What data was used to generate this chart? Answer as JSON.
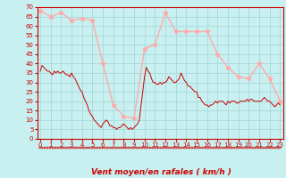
{
  "title": "",
  "xlabel": "Vent moyen/en rafales ( km/h )",
  "ylabel": "",
  "background_color": "#c8f0f0",
  "grid_color": "#a8d8d8",
  "ylim": [
    0,
    70
  ],
  "yticks": [
    0,
    5,
    10,
    15,
    20,
    25,
    30,
    35,
    40,
    45,
    50,
    55,
    60,
    65,
    70
  ],
  "xticks": [
    0,
    1,
    2,
    3,
    4,
    5,
    6,
    7,
    8,
    9,
    10,
    11,
    12,
    13,
    14,
    15,
    16,
    17,
    18,
    19,
    20,
    21,
    22,
    23
  ],
  "wind_avg_x": [
    0,
    0.17,
    0.33,
    0.5,
    0.67,
    0.83,
    1,
    1.17,
    1.33,
    1.5,
    1.67,
    1.83,
    2,
    2.17,
    2.33,
    2.5,
    2.67,
    2.83,
    3,
    3.17,
    3.33,
    3.5,
    3.67,
    3.83,
    4,
    4.17,
    4.33,
    4.5,
    4.67,
    4.83,
    5,
    5.17,
    5.33,
    5.5,
    5.67,
    5.83,
    6,
    6.17,
    6.33,
    6.5,
    6.67,
    6.83,
    7,
    7.17,
    7.33,
    7.5,
    7.67,
    7.83,
    8,
    8.17,
    8.33,
    8.5,
    8.67,
    8.83,
    9,
    9.17,
    9.33,
    9.5,
    9.67,
    9.83,
    10,
    10.17,
    10.33,
    10.5,
    10.67,
    10.83,
    11,
    11.17,
    11.33,
    11.5,
    11.67,
    11.83,
    12,
    12.17,
    12.33,
    12.5,
    12.67,
    12.83,
    13,
    13.17,
    13.33,
    13.5,
    13.67,
    13.83,
    14,
    14.17,
    14.33,
    14.5,
    14.67,
    14.83,
    15,
    15.17,
    15.33,
    15.5,
    15.67,
    15.83,
    16,
    16.17,
    16.33,
    16.5,
    16.67,
    16.83,
    17,
    17.17,
    17.33,
    17.5,
    17.67,
    17.83,
    18,
    18.17,
    18.33,
    18.5,
    18.67,
    18.83,
    19,
    19.17,
    19.33,
    19.5,
    19.67,
    19.83,
    20,
    20.17,
    20.33,
    20.5,
    20.67,
    20.83,
    21,
    21.17,
    21.33,
    21.5,
    21.67,
    21.83,
    22,
    22.17,
    22.33,
    22.5,
    22.67,
    22.83,
    23
  ],
  "wind_avg_y": [
    36,
    39,
    38,
    37,
    36,
    36,
    35,
    34,
    36,
    35,
    36,
    35,
    35,
    36,
    35,
    34,
    34,
    33,
    35,
    33,
    32,
    30,
    28,
    26,
    25,
    22,
    20,
    18,
    15,
    13,
    12,
    10,
    9,
    8,
    7,
    6,
    8,
    9,
    10,
    9,
    7,
    7,
    6,
    6,
    5,
    6,
    6,
    7,
    8,
    7,
    6,
    5,
    6,
    5,
    6,
    7,
    8,
    10,
    18,
    25,
    33,
    38,
    36,
    35,
    32,
    30,
    30,
    29,
    29,
    30,
    29,
    30,
    30,
    31,
    33,
    32,
    31,
    30,
    30,
    31,
    32,
    35,
    33,
    31,
    30,
    28,
    28,
    27,
    26,
    25,
    25,
    22,
    22,
    20,
    19,
    18,
    18,
    17,
    18,
    18,
    19,
    20,
    19,
    20,
    20,
    20,
    19,
    18,
    20,
    19,
    20,
    20,
    20,
    19,
    19,
    20,
    20,
    20,
    20,
    21,
    20,
    21,
    21,
    20,
    20,
    20,
    20,
    20,
    21,
    22,
    21,
    20,
    20,
    19,
    18,
    17,
    18,
    19,
    18
  ],
  "wind_gust_x": [
    0,
    1,
    2,
    3,
    4,
    5,
    6,
    7,
    8,
    9,
    10,
    11,
    12,
    13,
    14,
    15,
    16,
    17,
    18,
    19,
    20,
    21,
    22,
    23
  ],
  "wind_gust_y": [
    68,
    65,
    67,
    63,
    64,
    63,
    40,
    18,
    12,
    11,
    48,
    50,
    67,
    57,
    57,
    57,
    57,
    45,
    38,
    33,
    32,
    40,
    32,
    20
  ],
  "line_avg_color": "#cc0000",
  "line_gust_color": "#ffaaaa",
  "marker_color": "#ffaaaa",
  "tick_label_color": "#cc0000",
  "xlabel_color": "#cc0000",
  "axis_color": "#cc0000",
  "wind_dir_symbols": "⇆⇆⇆⇆⇆⇆⇆⇆⇆⇆⇆⇆⇆⇆⇆⇆⇆⇆⇆⇆⇆⇆⇆⇆⇆⇆⇆⇆⇆⇆⇆⇆⇆⇆⇆⇆⇆⇆⇆⇆⇆⇆⇆⇆⇆⇆⇆⇆⇆⇆⇆⇆⇆⇆⇆⇆⇆⇆⇆⇆⇆⇆⇆⇆⇆⇆⇆⇆⇆⇆⇆⇆⇆⇆⇆⇆⇆⇆⇆⇆⇆⇆⇆⇆⇆⇆⇆⇆⇆⇆⇆⇆"
}
